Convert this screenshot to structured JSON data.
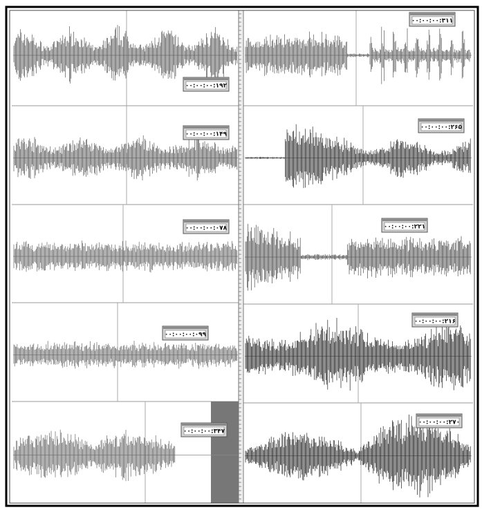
{
  "panels": [
    {
      "label": "۰۰:۰۰:۰۰:۱۹۲"
    },
    {
      "label": "۰۰:۰۰:۰۰:۱۴۹"
    },
    {
      "label": "۰۰:۰۰:۰۰:۰۷۸"
    },
    {
      "label": "۰۰:۰۰:۰۰:۰۹۹"
    },
    {
      "label": "۰۰:۰۰:۰۰:۳۴۷"
    },
    {
      "label": "۰۰:۰۰:۰۰:۳۱۱"
    },
    {
      "label": "۰۰:۰۰:۰۰:۲۶۵"
    },
    {
      "label": "۰۰:۰۰:۰۰:۲۲۱"
    },
    {
      "label": "۰۰:۰۰:۰۰:۲۱۶"
    },
    {
      "label": "۰۰:۰۰:۰۰:۲۷۰"
    }
  ]
}
